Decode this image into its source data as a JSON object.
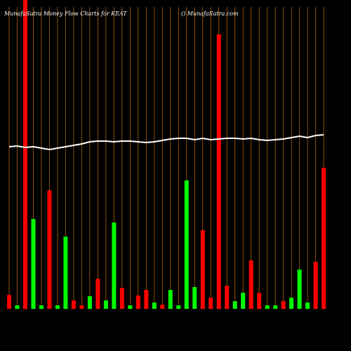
{
  "chart_data": {
    "type": "bar",
    "title": "MunafaSutra  Money Flow  Charts for KEAT",
    "subtitle": "() MunafaSutra.com",
    "categories": [
      null,
      null,
      null,
      null,
      null,
      null,
      null,
      null,
      null,
      null,
      null,
      null,
      null,
      null,
      null,
      null,
      null,
      null,
      null,
      null,
      null,
      null,
      null,
      null,
      null,
      null,
      null,
      null,
      null,
      null,
      null,
      null,
      null,
      null,
      null,
      null,
      null,
      null,
      null,
      null
    ],
    "values": [
      20,
      5,
      460,
      128,
      5,
      169,
      5,
      103,
      12,
      5,
      18,
      43,
      12,
      123,
      30,
      5,
      19,
      27,
      9,
      6,
      27,
      5,
      183,
      31,
      112,
      16,
      391,
      33,
      11,
      23,
      69,
      23,
      5,
      5,
      11,
      16,
      56,
      9,
      67,
      201
    ],
    "colors": [
      "#ff0000",
      "#00ff00",
      "#ff0000",
      "#00ff00",
      "#00ff00",
      "#ff0000",
      "#00ff00",
      "#00ff00",
      "#ff0000",
      "#ff0000",
      "#00ff00",
      "#ff0000",
      "#00ff00",
      "#00ff00",
      "#ff0000",
      "#00ff00",
      "#ff0000",
      "#ff0000",
      "#00ff00",
      "#ff0000",
      "#00ff00",
      "#00ff00",
      "#00ff00",
      "#00ff00",
      "#ff0000",
      "#ff0000",
      "#ff0000",
      "#ff0000",
      "#00ff00",
      "#00ff00",
      "#ff0000",
      "#ff0000",
      "#00ff00",
      "#00ff00",
      "#ff0000",
      "#00ff00",
      "#00ff00",
      "#00ff00",
      "#ff0000",
      "#ff0000"
    ],
    "line": {
      "color": "#ffffff",
      "values": [
        231,
        232,
        230,
        231,
        229,
        227,
        229,
        231,
        233,
        235,
        238,
        239,
        239,
        238,
        239,
        239,
        238,
        237,
        238,
        240,
        242,
        243,
        243,
        241,
        243,
        241,
        242,
        243,
        243,
        242,
        243,
        241,
        240,
        241,
        242,
        244,
        246,
        244,
        247,
        248
      ]
    },
    "ylim": [
      0,
      440
    ],
    "grid_color": "#b8620a"
  }
}
